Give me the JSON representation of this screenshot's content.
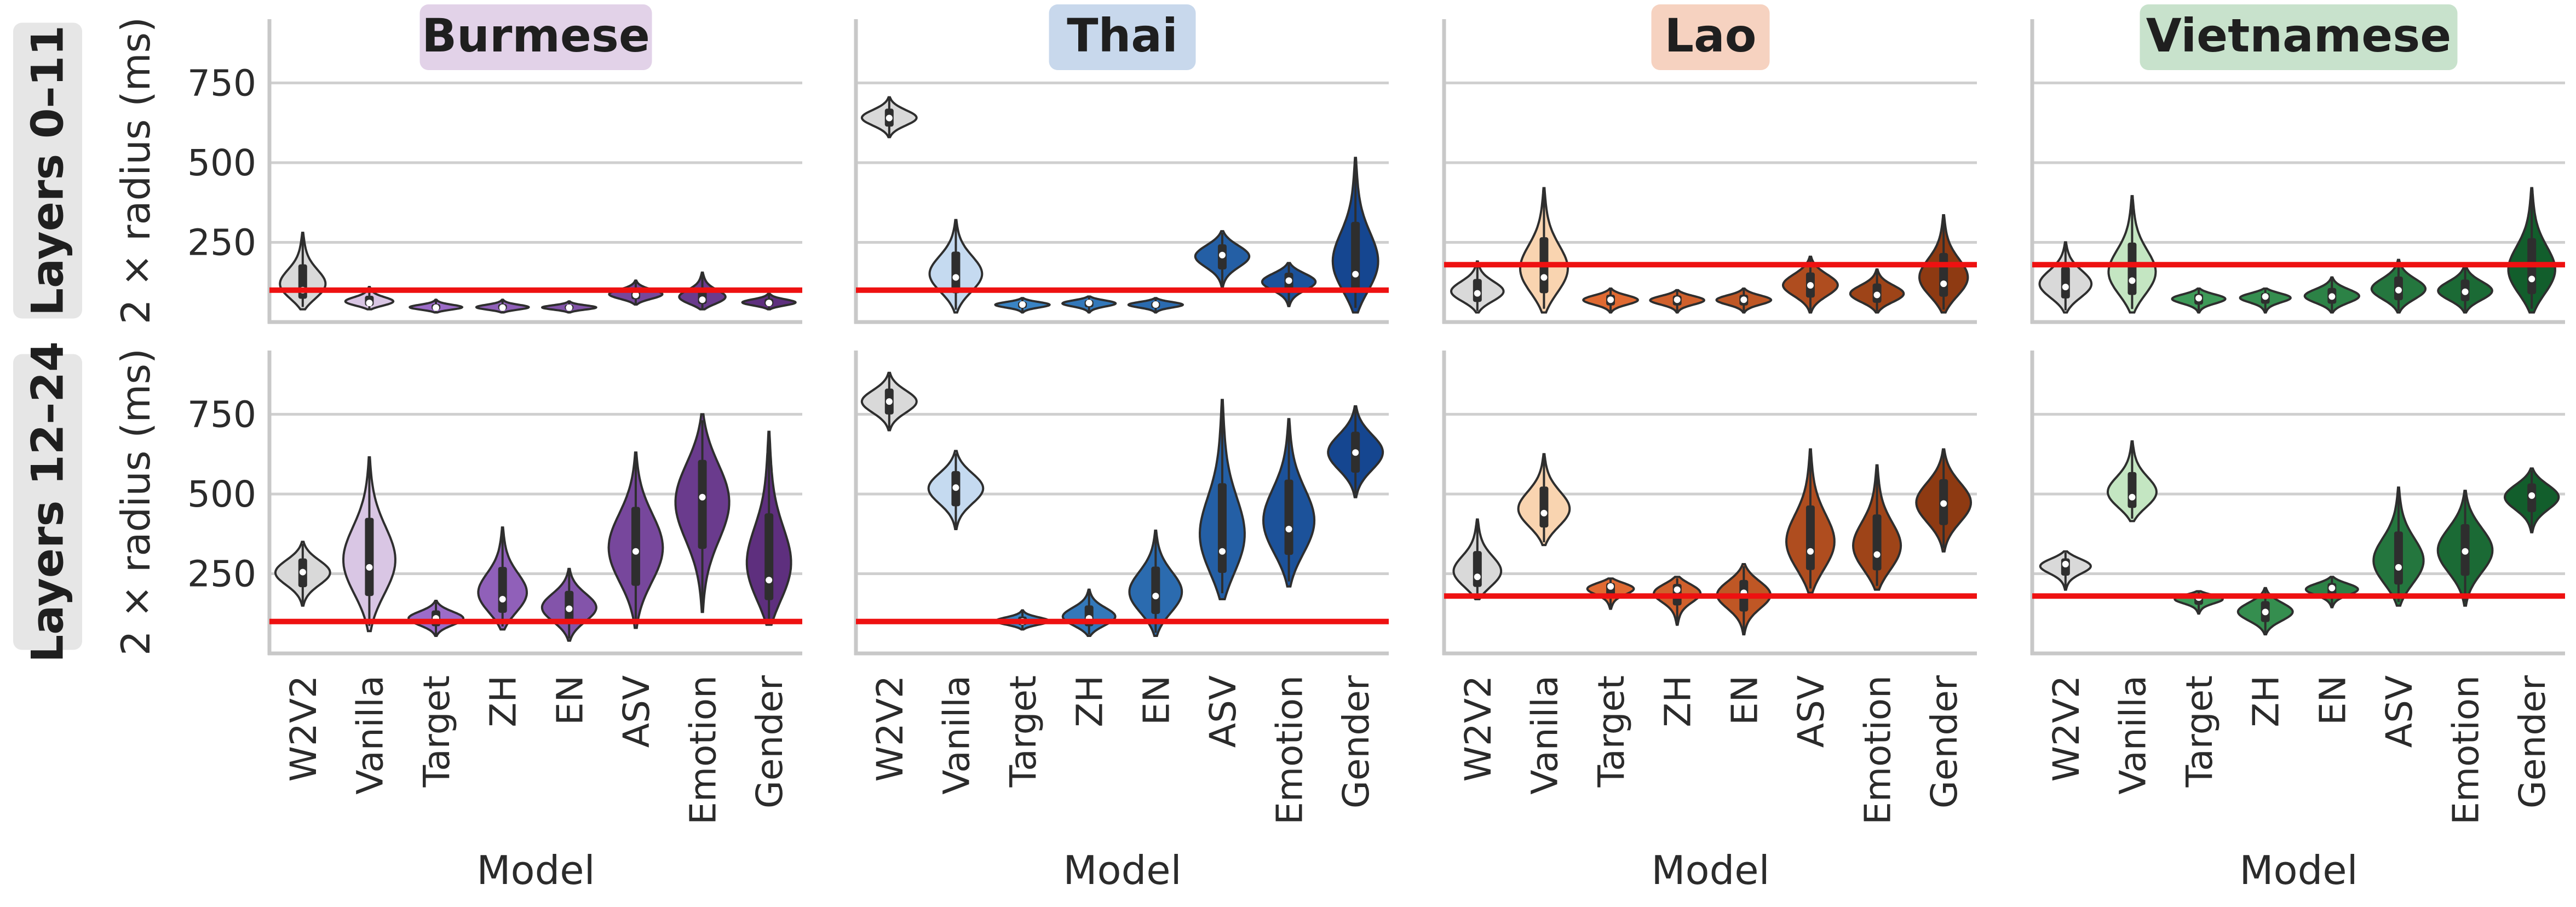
{
  "chart_data": {
    "type": "violin",
    "title": "",
    "xlabel": "Model",
    "ylabel": "2 × radius (ms)",
    "ylim": [
      0,
      950
    ],
    "yticks": [
      250,
      500,
      750
    ],
    "models": [
      "W2V2",
      "Vanilla",
      "Target",
      "ZH",
      "EN",
      "ASV",
      "Emotion",
      "Gender"
    ],
    "rows": [
      {
        "label": "Layers 0–11"
      },
      {
        "label": "Layers 12–24"
      }
    ],
    "languages": [
      {
        "name": "Burmese",
        "title_bg": "#e2d2e8",
        "vanilla_color": "#d9c6e4",
        "color_scale": [
          "#9c6cc8",
          "#5e2f7e"
        ],
        "reference": [
          100,
          100
        ],
        "rows": [
          [
            [
              40,
              100,
              280
            ],
            [
              40,
              60,
              110
            ],
            [
              30,
              45,
              70
            ],
            [
              30,
              45,
              70
            ],
            [
              30,
              45,
              65
            ],
            [
              55,
              85,
              130
            ],
            [
              40,
              70,
              155
            ],
            [
              40,
              60,
              90
            ]
          ],
          [
            [
              150,
              255,
              350
            ],
            [
              70,
              270,
              615
            ],
            [
              55,
              110,
              165
            ],
            [
              75,
              170,
              395
            ],
            [
              40,
              140,
              265
            ],
            [
              80,
              320,
              630
            ],
            [
              130,
              490,
              750
            ],
            [
              90,
              230,
              695
            ]
          ]
        ]
      },
      {
        "name": "Thai",
        "title_bg": "#c8d8ec",
        "vanilla_color": "#c5daf0",
        "color_scale": [
          "#3a84c4",
          "#154690"
        ],
        "reference": [
          100,
          100
        ],
        "rows": [
          [
            [
              580,
              640,
              705
            ],
            [
              30,
              140,
              320
            ],
            [
              30,
              55,
              75
            ],
            [
              30,
              60,
              80
            ],
            [
              30,
              55,
              75
            ],
            [
              110,
              210,
              285
            ],
            [
              50,
              130,
              185
            ],
            [
              30,
              150,
              515
            ]
          ],
          [
            [
              700,
              790,
              880
            ],
            [
              390,
              520,
              635
            ],
            [
              75,
              100,
              135
            ],
            [
              55,
              110,
              200
            ],
            [
              55,
              180,
              385
            ],
            [
              170,
              320,
              795
            ],
            [
              210,
              390,
              735
            ],
            [
              490,
              630,
              775
            ]
          ]
        ]
      },
      {
        "name": "Lao",
        "title_bg": "#f6d2c0",
        "vanilla_color": "#f9d4b0",
        "color_scale": [
          "#e06a32",
          "#8e3a12"
        ],
        "reference": [
          180,
          180
        ],
        "rows": [
          [
            [
              30,
              90,
              190
            ],
            [
              30,
              140,
              420
            ],
            [
              30,
              70,
              105
            ],
            [
              30,
              70,
              100
            ],
            [
              30,
              70,
              105
            ],
            [
              30,
              115,
              205
            ],
            [
              30,
              85,
              165
            ],
            [
              30,
              120,
              335
            ]
          ],
          [
            [
              170,
              240,
              420
            ],
            [
              340,
              440,
              625
            ],
            [
              140,
              210,
              235
            ],
            [
              90,
              200,
              240
            ],
            [
              60,
              190,
              280
            ],
            [
              190,
              320,
              640
            ],
            [
              200,
              310,
              590
            ],
            [
              320,
              470,
              640
            ]
          ]
        ]
      },
      {
        "name": "Vietnamese",
        "title_bg": "#c8e2cc",
        "vanilla_color": "#c4e6c2",
        "color_scale": [
          "#3e9a58",
          "#125e2c"
        ],
        "reference": [
          180,
          180
        ],
        "rows": [
          [
            [
              30,
              110,
              250
            ],
            [
              30,
              130,
              395
            ],
            [
              30,
              75,
              105
            ],
            [
              30,
              80,
              105
            ],
            [
              30,
              80,
              140
            ],
            [
              30,
              100,
              195
            ],
            [
              30,
              95,
              180
            ],
            [
              30,
              135,
              420
            ]
          ],
          [
            [
              200,
              280,
              320
            ],
            [
              415,
              490,
              665
            ],
            [
              125,
              175,
              195
            ],
            [
              60,
              130,
              205
            ],
            [
              145,
              205,
              240
            ],
            [
              150,
              270,
              520
            ],
            [
              150,
              320,
              510
            ],
            [
              380,
              495,
              580
            ]
          ]
        ]
      }
    ]
  }
}
